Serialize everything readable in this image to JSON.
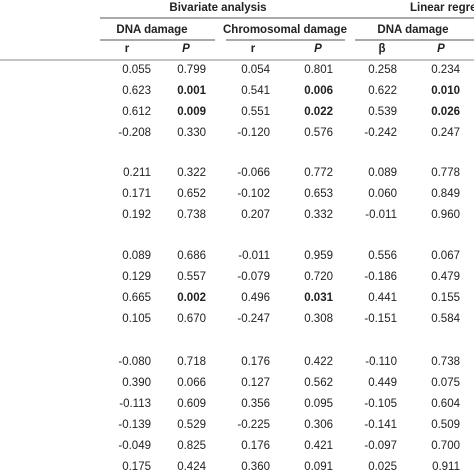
{
  "header": {
    "group_titles": [
      "Bivariate analysis",
      "Linear regres"
    ],
    "subgroups": [
      "DNA damage",
      "Chromosomal damage",
      "DNA damage"
    ],
    "columns": [
      "r",
      "P",
      "r",
      "P",
      "β",
      "P"
    ]
  },
  "table": {
    "groups": [
      {
        "rows": [
          {
            "cells": [
              "0.055",
              "0.799",
              "0.054",
              "0.801",
              "0.258",
              "0.234"
            ],
            "bold": []
          },
          {
            "cells": [
              "0.623",
              "0.001",
              "0.541",
              "0.006",
              "0.622",
              "0.010"
            ],
            "bold": [
              1,
              3,
              5
            ]
          },
          {
            "cells": [
              "0.612",
              "0.009",
              "0.551",
              "0.022",
              "0.539",
              "0.026"
            ],
            "bold": [
              1,
              3,
              5
            ]
          },
          {
            "cells": [
              "-0.208",
              "0.330",
              "-0.120",
              "0.576",
              "-0.242",
              "0.247"
            ],
            "bold": []
          }
        ]
      },
      {
        "rows": [
          {
            "cells": [
              "0.211",
              "0.322",
              "-0.066",
              "0.772",
              "0.089",
              "0.778"
            ],
            "bold": []
          },
          {
            "cells": [
              "0.171",
              "0.652",
              "-0.102",
              "0.653",
              "0.060",
              "0.849"
            ],
            "bold": []
          },
          {
            "cells": [
              "0.192",
              "0.738",
              "0.207",
              "0.332",
              "-0.011",
              "0.960"
            ],
            "bold": []
          }
        ]
      },
      {
        "rows": [
          {
            "cells": [
              "0.089",
              "0.686",
              "-0.011",
              "0.959",
              "0.556",
              "0.067"
            ],
            "bold": []
          },
          {
            "cells": [
              "0.129",
              "0.557",
              "-0.079",
              "0.720",
              "-0.186",
              "0.479"
            ],
            "bold": []
          },
          {
            "cells": [
              "0.665",
              "0.002",
              "0.496",
              "0.031",
              "0.441",
              "0.155"
            ],
            "bold": [
              1,
              3
            ]
          },
          {
            "cells": [
              "0.105",
              "0.670",
              "-0.247",
              "0.308",
              "-0.151",
              "0.584"
            ],
            "bold": []
          }
        ]
      },
      {
        "rows": [
          {
            "cells": [
              "-0.080",
              "0.718",
              "0.176",
              "0.422",
              "-0.110",
              "0.738"
            ],
            "bold": []
          },
          {
            "cells": [
              "0.390",
              "0.066",
              "0.127",
              "0.562",
              "0.449",
              "0.075"
            ],
            "bold": []
          },
          {
            "cells": [
              "-0.113",
              "0.609",
              "0.356",
              "0.095",
              "-0.105",
              "0.604"
            ],
            "bold": []
          },
          {
            "cells": [
              "-0.139",
              "0.529",
              "-0.225",
              "0.306",
              "-0.141",
              "0.509"
            ],
            "bold": []
          },
          {
            "cells": [
              "-0.049",
              "0.825",
              "0.176",
              "0.421",
              "-0.097",
              "0.700"
            ],
            "bold": []
          },
          {
            "cells": [
              "0.175",
              "0.424",
              "0.360",
              "0.091",
              "0.025",
              "0.911"
            ],
            "bold": []
          }
        ]
      }
    ]
  }
}
